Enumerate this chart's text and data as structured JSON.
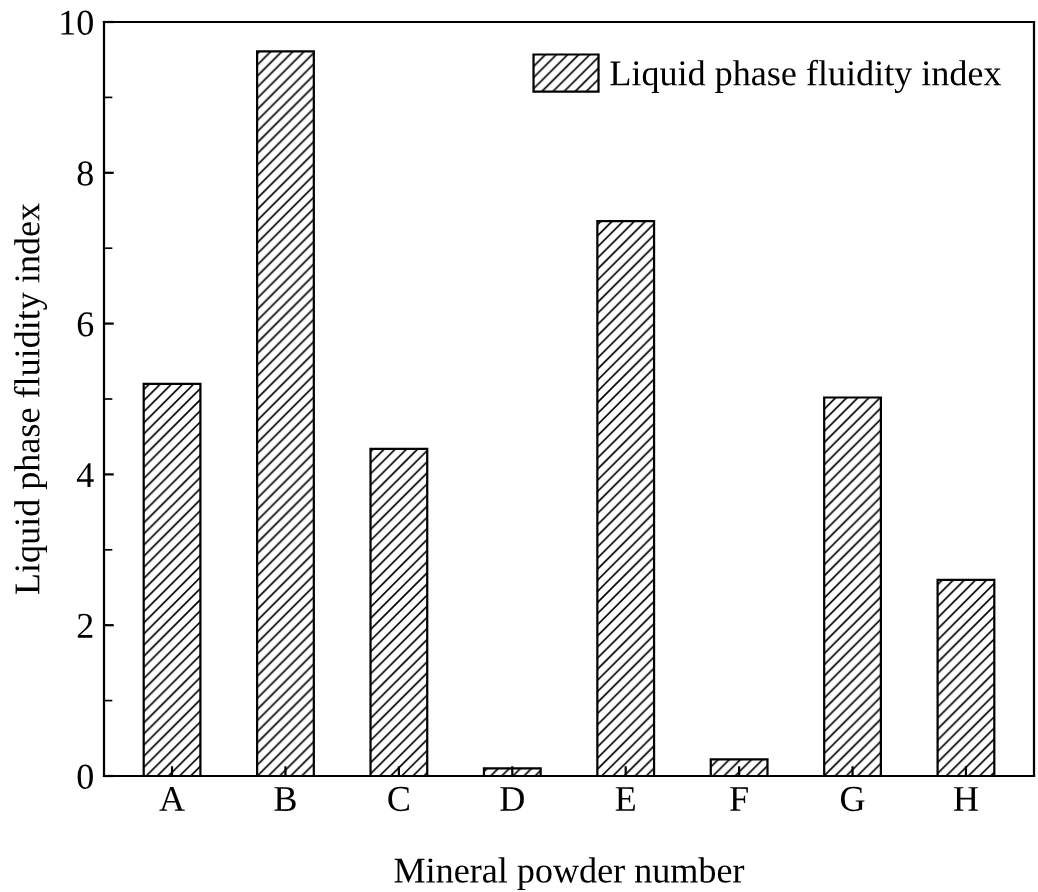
{
  "chart_data": {
    "type": "bar",
    "xlabel": "Mineral powder number",
    "ylabel": "Liquid phase fluidity index",
    "categories": [
      "A",
      "B",
      "C",
      "D",
      "E",
      "F",
      "G",
      "H"
    ],
    "series": [
      {
        "name": "Liquid phase fluidity index",
        "color": "#000000",
        "values": [
          5.2,
          9.61,
          4.34,
          0.1,
          7.36,
          0.22,
          5.02,
          2.6
        ]
      }
    ],
    "ylim": [
      0,
      10
    ],
    "yticks": [
      0,
      2,
      4,
      6,
      8,
      10
    ],
    "grid": false,
    "legend": "top right"
  }
}
